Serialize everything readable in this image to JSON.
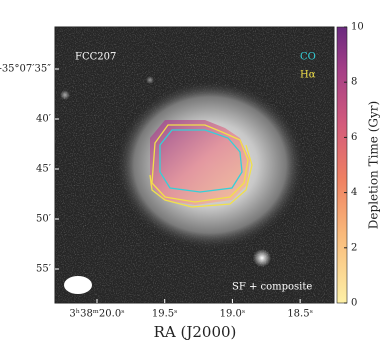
{
  "chart_data": {
    "type": "image",
    "x_label": "RA (J2000)",
    "colorbar_label": "Depletion Time (Gyr)",
    "annotations": {
      "object": "FCC207",
      "co": "CO",
      "halpha": "Hα",
      "class": "SF + composite"
    },
    "xlim": [
      20.31,
      18.25
    ],
    "xticks": [
      {
        "value": 20.0,
        "label": "3ʰ38ᵐ20.0ˢ"
      },
      {
        "value": 19.5,
        "label": "19.5ˢ"
      },
      {
        "value": 19.0,
        "label": "19.0ˢ"
      },
      {
        "value": 18.5,
        "label": "18.5ˢ"
      }
    ],
    "ylim": [
      58.4,
      30.8
    ],
    "yticks": [
      {
        "value": 35,
        "label": "-35°07′35″"
      },
      {
        "value": 40,
        "label": "40′"
      },
      {
        "value": 45,
        "label": "45′"
      },
      {
        "value": 50,
        "label": "50′"
      },
      {
        "value": 55,
        "label": "55′"
      }
    ],
    "clim": [
      0,
      10
    ],
    "cticks": [
      0,
      2,
      4,
      6,
      8,
      10
    ]
  }
}
